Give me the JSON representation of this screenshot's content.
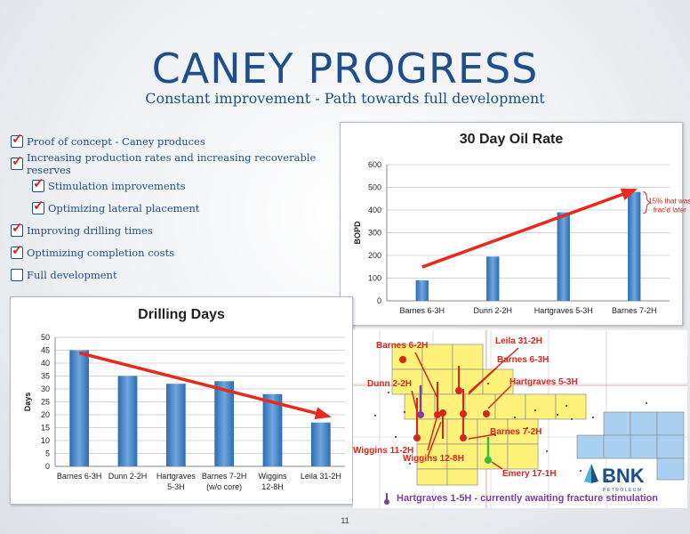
{
  "slide": {
    "title": "CANEY PROGRESS",
    "subtitle": "Constant improvement - Path towards full development",
    "page_number": "11"
  },
  "bullets": [
    {
      "text": "Proof of concept - Caney produces",
      "checked": true,
      "level": 1
    },
    {
      "text": "Increasing production rates and increasing recoverable reserves",
      "checked": true,
      "level": 1
    },
    {
      "text": "Stimulation improvements",
      "checked": true,
      "level": 2
    },
    {
      "text": "Optimizing lateral placement",
      "checked": true,
      "level": 2
    },
    {
      "text": "Improving drilling times",
      "checked": true,
      "level": 1
    },
    {
      "text": "Optimizing completion costs",
      "checked": true,
      "level": 1
    },
    {
      "text": "Full development",
      "checked": false,
      "level": 1
    }
  ],
  "chart_data": [
    {
      "type": "bar",
      "title": "30 Day Oil Rate",
      "ylabel": "BOPD",
      "categories": [
        "Barnes 6-3H",
        "Dunn 2-2H",
        "Hartgraves 5-3H",
        "Barnes 7-2H"
      ],
      "values": [
        90,
        195,
        390,
        480
      ],
      "ylim": [
        0,
        600
      ],
      "yticks": [
        "0",
        "100",
        "200",
        "300",
        "400",
        "500",
        "600"
      ],
      "grid": true,
      "color": "#4a86c8",
      "trend_color": "#e8291c",
      "annotation": "15% that was frac'd later"
    },
    {
      "type": "bar",
      "title": "Drilling Days",
      "ylabel": "Days",
      "categories": [
        "Barnes 6-3H",
        "Dunn 2-2H",
        "Hartgraves 5-3H",
        "Barnes 7-2H (w/o core)",
        "Wiggins 12-8H",
        "Leila 31-2H"
      ],
      "category_lines": [
        [
          "Barnes 6-3H"
        ],
        [
          "Dunn 2-2H"
        ],
        [
          "Hartgraves",
          "5-3H"
        ],
        [
          "Barnes 7-2H",
          "(w/o core)"
        ],
        [
          "Wiggins",
          "12-8H"
        ],
        [
          "Leila 31-2H"
        ]
      ],
      "values": [
        45,
        35,
        32,
        33,
        28,
        17
      ],
      "ylim": [
        0,
        50
      ],
      "yticks": [
        "0",
        "5",
        "10",
        "15",
        "20",
        "25",
        "30",
        "35",
        "40",
        "45",
        "50"
      ],
      "grid": true,
      "color": "#4a86c8",
      "trend_color": "#e8291c"
    }
  ],
  "map": {
    "labels": {
      "barnes_6_2h": "Barnes 6-2H",
      "leila_31_2h": "Leila 31-2H",
      "barnes_6_3h": "Barnes 6-3H",
      "dunn_2_2h": "Dunn 2-2H",
      "hartgraves_5_3h": "Hartgraves 5-3H",
      "barnes_7_2h": "Barnes 7-2H",
      "wiggins_11_2h": "Wiggins 11-2H",
      "wiggins_12_8h": "Wiggins 12-8H",
      "emery_17_1h": "Emery 17-1H"
    },
    "legend_text": "Hartgraves 1-5H - currently awaiting fracture stimulation",
    "logo_text": "BNK",
    "logo_subtext": "PETROLEUM",
    "colors": {
      "lease": "#fff27a",
      "well": "#d7261a",
      "awaiting": "#7b3fa8",
      "emery": "#2fbf3b"
    }
  }
}
